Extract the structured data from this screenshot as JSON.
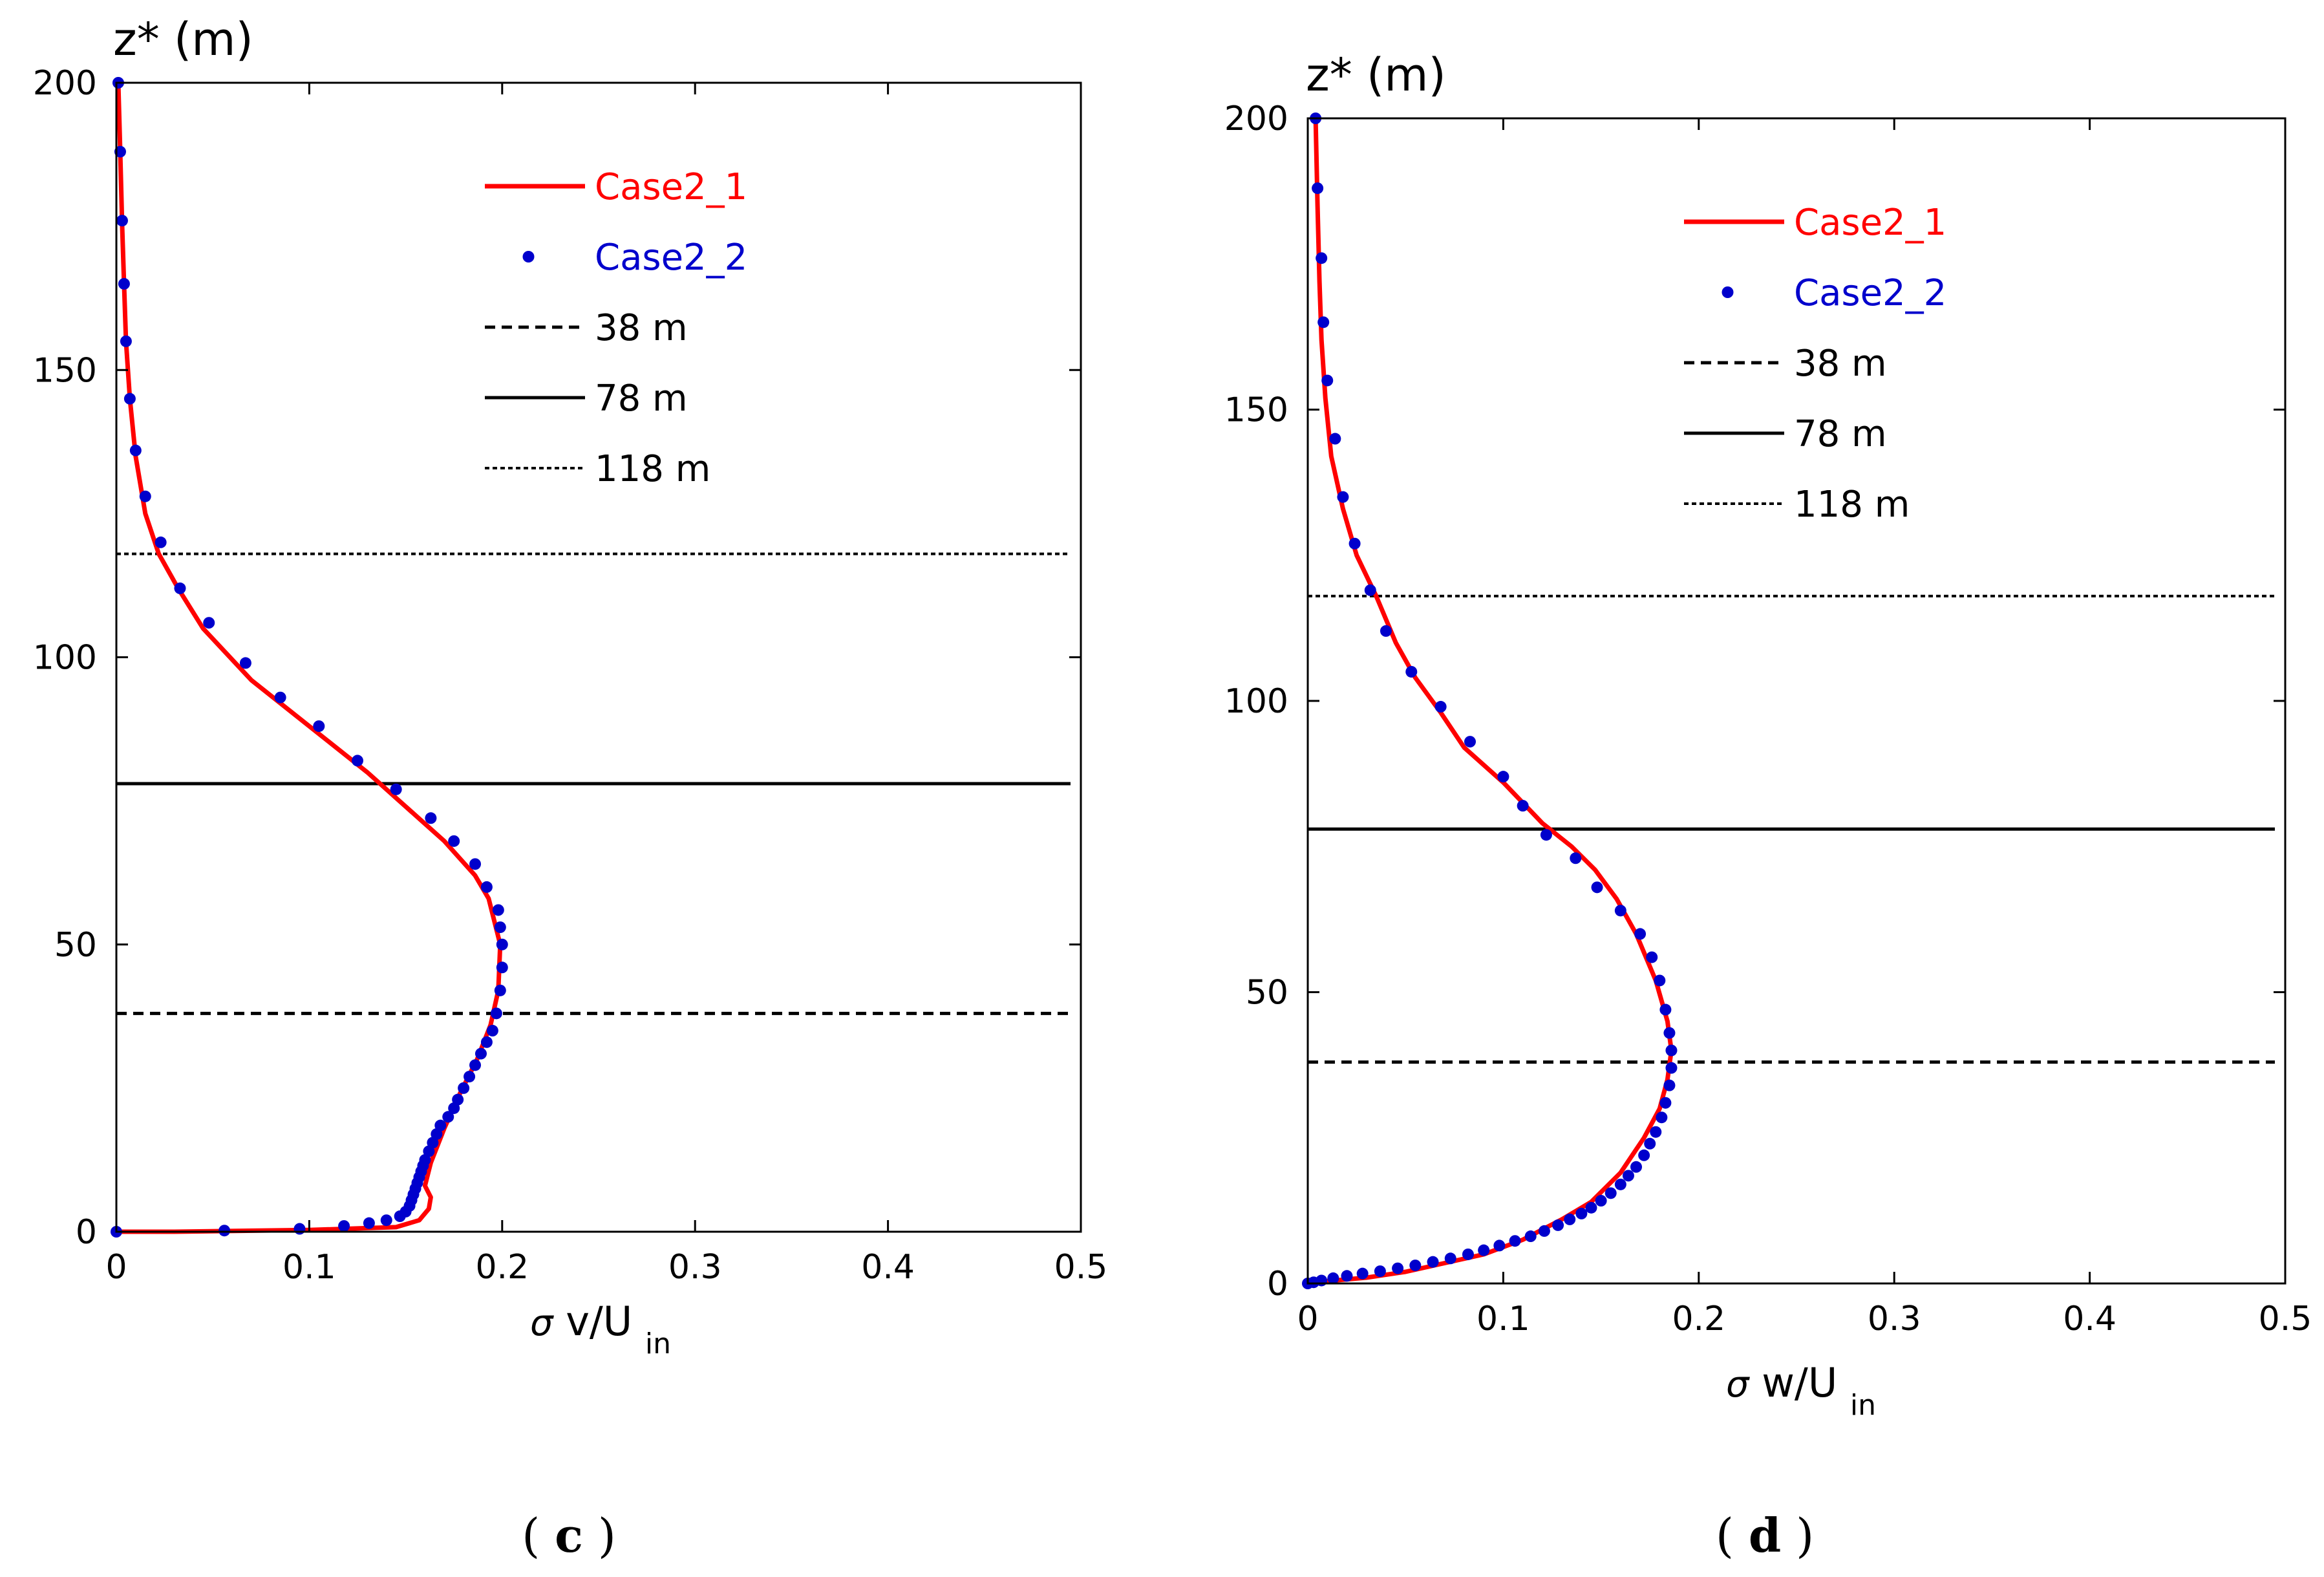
{
  "chart_data": [
    {
      "type": "line",
      "panel_label": "c",
      "caption_open": "(",
      "caption_close": ")",
      "ylabel": "z* (m)",
      "xlabel": {
        "sigma": "σ",
        "main": "v/U",
        "sub": "in"
      },
      "xlim": [
        0,
        0.5
      ],
      "ylim": [
        0,
        200
      ],
      "x_ticks": [
        "0",
        "0.1",
        "0.2",
        "0.3",
        "0.4",
        "0.5"
      ],
      "y_ticks": [
        "0",
        "50",
        "100",
        "150",
        "200"
      ],
      "legend": [
        {
          "label": "Case2_1",
          "style": "line",
          "color": "#ff0000"
        },
        {
          "label": "Case2_2",
          "style": "dot",
          "color": "#0000cc"
        },
        {
          "label": "38 m",
          "style": "dashed",
          "color": "#000000"
        },
        {
          "label": "78 m",
          "style": "solid",
          "color": "#000000"
        },
        {
          "label": "118 m",
          "style": "dotted",
          "color": "#000000"
        }
      ],
      "hlines": [
        {
          "y": 38,
          "style": "dashed"
        },
        {
          "y": 78,
          "style": "solid"
        },
        {
          "y": 118,
          "style": "dotted"
        }
      ],
      "series": [
        {
          "name": "Case2_1",
          "style": "line",
          "color": "#ff0000",
          "points": [
            [
              0,
              0
            ],
            [
              0.03,
              0
            ],
            [
              0.1,
              0.3
            ],
            [
              0.145,
              0.8
            ],
            [
              0.157,
              2
            ],
            [
              0.162,
              4
            ],
            [
              0.163,
              6
            ],
            [
              0.16,
              8
            ],
            [
              0.163,
              12
            ],
            [
              0.17,
              18
            ],
            [
              0.178,
              24
            ],
            [
              0.187,
              30
            ],
            [
              0.194,
              36
            ],
            [
              0.198,
              42
            ],
            [
              0.199,
              50
            ],
            [
              0.193,
              58
            ],
            [
              0.186,
              62
            ],
            [
              0.17,
              68
            ],
            [
              0.15,
              74
            ],
            [
              0.13,
              80
            ],
            [
              0.1,
              88
            ],
            [
              0.07,
              96
            ],
            [
              0.045,
              105
            ],
            [
              0.032,
              112
            ],
            [
              0.022,
              118
            ],
            [
              0.015,
              125
            ],
            [
              0.01,
              135
            ],
            [
              0.007,
              145
            ],
            [
              0.005,
              155
            ],
            [
              0.004,
              165
            ],
            [
              0.003,
              175
            ],
            [
              0.002,
              188
            ],
            [
              0.001,
              200
            ]
          ]
        },
        {
          "name": "Case2_2",
          "style": "dot",
          "color": "#0000cc",
          "points": [
            [
              0,
              0
            ],
            [
              0.056,
              0.2
            ],
            [
              0.095,
              0.5
            ],
            [
              0.118,
              1
            ],
            [
              0.131,
              1.5
            ],
            [
              0.14,
              2
            ],
            [
              0.147,
              2.7
            ],
            [
              0.15,
              3.5
            ],
            [
              0.152,
              4.5
            ],
            [
              0.153,
              5.5
            ],
            [
              0.154,
              6.5
            ],
            [
              0.155,
              7.5
            ],
            [
              0.156,
              8.5
            ],
            [
              0.157,
              9.5
            ],
            [
              0.158,
              10.5
            ],
            [
              0.159,
              11.5
            ],
            [
              0.16,
              12.5
            ],
            [
              0.162,
              14
            ],
            [
              0.164,
              15.5
            ],
            [
              0.166,
              17
            ],
            [
              0.168,
              18.5
            ],
            [
              0.172,
              20
            ],
            [
              0.175,
              21.5
            ],
            [
              0.177,
              23
            ],
            [
              0.18,
              25
            ],
            [
              0.183,
              27
            ],
            [
              0.186,
              29
            ],
            [
              0.189,
              31
            ],
            [
              0.192,
              33
            ],
            [
              0.195,
              35
            ],
            [
              0.197,
              38
            ],
            [
              0.199,
              42
            ],
            [
              0.2,
              46
            ],
            [
              0.2,
              50
            ],
            [
              0.199,
              53
            ],
            [
              0.198,
              56
            ],
            [
              0.192,
              60
            ],
            [
              0.186,
              64
            ],
            [
              0.175,
              68
            ],
            [
              0.163,
              72
            ],
            [
              0.145,
              77
            ],
            [
              0.125,
              82
            ],
            [
              0.105,
              88
            ],
            [
              0.085,
              93
            ],
            [
              0.067,
              99
            ],
            [
              0.048,
              106
            ],
            [
              0.033,
              112
            ],
            [
              0.023,
              120
            ],
            [
              0.015,
              128
            ],
            [
              0.01,
              136
            ],
            [
              0.007,
              145
            ],
            [
              0.005,
              155
            ],
            [
              0.004,
              165
            ],
            [
              0.003,
              176
            ],
            [
              0.002,
              188
            ],
            [
              0.001,
              200
            ]
          ]
        }
      ]
    },
    {
      "type": "line",
      "panel_label": "d",
      "caption_open": "(",
      "caption_close": ")",
      "ylabel": "z* (m)",
      "xlabel": {
        "sigma": "σ",
        "main": "w/U",
        "sub": "in"
      },
      "xlim": [
        0,
        0.5
      ],
      "ylim": [
        0,
        200
      ],
      "x_ticks": [
        "0",
        "0.1",
        "0.2",
        "0.3",
        "0.4",
        "0.5"
      ],
      "y_ticks": [
        "0",
        "50",
        "100",
        "150",
        "200"
      ],
      "legend": [
        {
          "label": "Case2_1",
          "style": "line",
          "color": "#ff0000"
        },
        {
          "label": "Case2_2",
          "style": "dot",
          "color": "#0000cc"
        },
        {
          "label": "38 m",
          "style": "dashed",
          "color": "#000000"
        },
        {
          "label": "78 m",
          "style": "solid",
          "color": "#000000"
        },
        {
          "label": "118 m",
          "style": "dotted",
          "color": "#000000"
        }
      ],
      "hlines": [
        {
          "y": 38,
          "style": "dashed"
        },
        {
          "y": 78,
          "style": "solid"
        },
        {
          "y": 118,
          "style": "dotted"
        }
      ],
      "series": [
        {
          "name": "Case2_1",
          "style": "line",
          "color": "#ff0000",
          "points": [
            [
              0,
              0
            ],
            [
              0.01,
              0.4
            ],
            [
              0.03,
              1
            ],
            [
              0.05,
              2
            ],
            [
              0.07,
              3.5
            ],
            [
              0.09,
              5
            ],
            [
              0.11,
              7.5
            ],
            [
              0.13,
              11
            ],
            [
              0.145,
              14
            ],
            [
              0.16,
              19
            ],
            [
              0.172,
              25
            ],
            [
              0.18,
              30
            ],
            [
              0.184,
              35
            ],
            [
              0.186,
              40
            ],
            [
              0.184,
              45
            ],
            [
              0.178,
              52
            ],
            [
              0.168,
              60
            ],
            [
              0.158,
              66
            ],
            [
              0.147,
              71
            ],
            [
              0.135,
              75
            ],
            [
              0.12,
              79
            ],
            [
              0.1,
              86
            ],
            [
              0.08,
              92
            ],
            [
              0.068,
              98
            ],
            [
              0.055,
              104
            ],
            [
              0.045,
              110
            ],
            [
              0.035,
              118
            ],
            [
              0.025,
              125
            ],
            [
              0.018,
              133
            ],
            [
              0.012,
              142
            ],
            [
              0.009,
              152
            ],
            [
              0.007,
              162
            ],
            [
              0.006,
              172
            ],
            [
              0.005,
              185
            ],
            [
              0.004,
              200
            ]
          ]
        },
        {
          "name": "Case2_2",
          "style": "dot",
          "color": "#0000cc",
          "points": [
            [
              0,
              0
            ],
            [
              0.003,
              0.2
            ],
            [
              0.007,
              0.5
            ],
            [
              0.013,
              0.9
            ],
            [
              0.02,
              1.3
            ],
            [
              0.028,
              1.7
            ],
            [
              0.037,
              2.1
            ],
            [
              0.046,
              2.6
            ],
            [
              0.055,
              3.1
            ],
            [
              0.064,
              3.7
            ],
            [
              0.073,
              4.3
            ],
            [
              0.082,
              5
            ],
            [
              0.09,
              5.7
            ],
            [
              0.098,
              6.5
            ],
            [
              0.106,
              7.3
            ],
            [
              0.114,
              8.1
            ],
            [
              0.121,
              9
            ],
            [
              0.128,
              10
            ],
            [
              0.134,
              11
            ],
            [
              0.14,
              12
            ],
            [
              0.145,
              13
            ],
            [
              0.15,
              14.2
            ],
            [
              0.155,
              15.5
            ],
            [
              0.16,
              17
            ],
            [
              0.164,
              18.5
            ],
            [
              0.168,
              20
            ],
            [
              0.172,
              22
            ],
            [
              0.175,
              24
            ],
            [
              0.178,
              26
            ],
            [
              0.181,
              28.5
            ],
            [
              0.183,
              31
            ],
            [
              0.185,
              34
            ],
            [
              0.186,
              37
            ],
            [
              0.186,
              40
            ],
            [
              0.185,
              43
            ],
            [
              0.183,
              47
            ],
            [
              0.18,
              52
            ],
            [
              0.176,
              56
            ],
            [
              0.17,
              60
            ],
            [
              0.16,
              64
            ],
            [
              0.148,
              68
            ],
            [
              0.137,
              73
            ],
            [
              0.122,
              77
            ],
            [
              0.11,
              82
            ],
            [
              0.1,
              87
            ],
            [
              0.083,
              93
            ],
            [
              0.068,
              99
            ],
            [
              0.053,
              105
            ],
            [
              0.04,
              112
            ],
            [
              0.032,
              119
            ],
            [
              0.024,
              127
            ],
            [
              0.018,
              135
            ],
            [
              0.014,
              145
            ],
            [
              0.01,
              155
            ],
            [
              0.008,
              165
            ],
            [
              0.007,
              176
            ],
            [
              0.005,
              188
            ],
            [
              0.004,
              200
            ]
          ]
        }
      ]
    }
  ]
}
